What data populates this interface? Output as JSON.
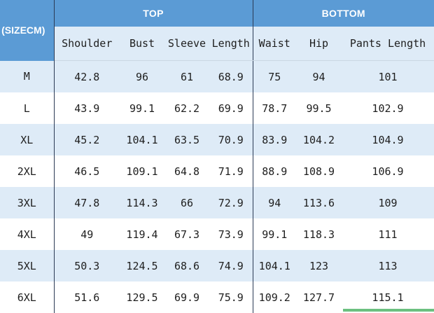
{
  "table": {
    "corner_label": "(SIZECM)",
    "groups": {
      "top": "TOP",
      "bottom": "BOTTOM"
    },
    "columns": [
      "Shoulder",
      "Bust",
      "Sleeve",
      "Length",
      "Waist",
      "Hip",
      "Pants Length"
    ],
    "rows": [
      {
        "size": "M",
        "values": [
          "42.8",
          "96",
          "61",
          "68.9",
          "75",
          "94",
          "101"
        ]
      },
      {
        "size": "L",
        "values": [
          "43.9",
          "99.1",
          "62.2",
          "69.9",
          "78.7",
          "99.5",
          "102.9"
        ]
      },
      {
        "size": "XL",
        "values": [
          "45.2",
          "104.1",
          "63.5",
          "70.9",
          "83.9",
          "104.2",
          "104.9"
        ]
      },
      {
        "size": "2XL",
        "values": [
          "46.5",
          "109.1",
          "64.8",
          "71.9",
          "88.9",
          "108.9",
          "106.9"
        ]
      },
      {
        "size": "3XL",
        "values": [
          "47.8",
          "114.3",
          "66",
          "72.9",
          "94",
          "113.6",
          "109"
        ]
      },
      {
        "size": "4XL",
        "values": [
          "49",
          "119.4",
          "67.3",
          "73.9",
          "99.1",
          "118.3",
          "111"
        ]
      },
      {
        "size": "5XL",
        "values": [
          "50.3",
          "124.5",
          "68.6",
          "74.9",
          "104.1",
          "123",
          "113"
        ]
      },
      {
        "size": "6XL",
        "values": [
          "51.6",
          "129.5",
          "69.9",
          "75.9",
          "109.2",
          "127.7",
          "115.1"
        ]
      }
    ]
  },
  "colors": {
    "header_blue": "#5b9bd5",
    "light_blue": "#deebf7",
    "divider": "#2b3a55",
    "accent_green": "#6cc080"
  }
}
